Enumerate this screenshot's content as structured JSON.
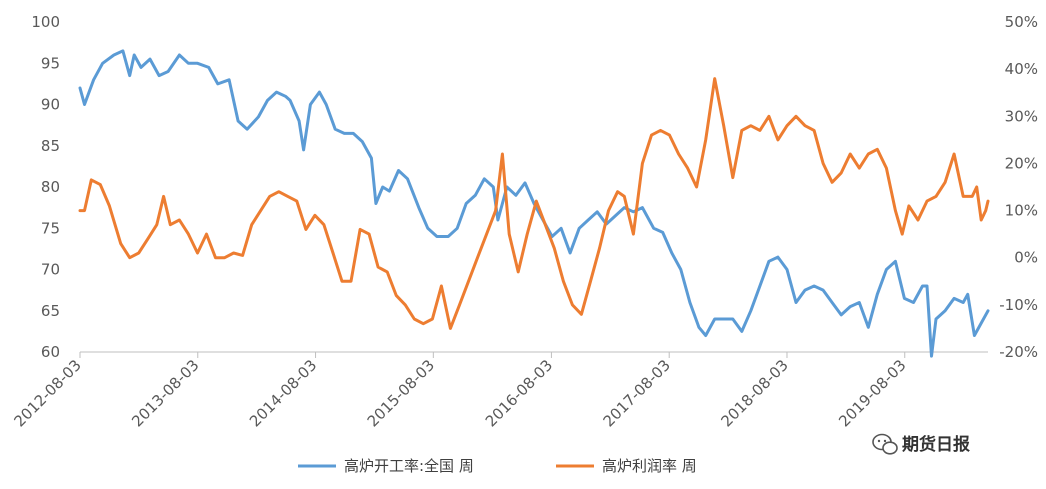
{
  "chart_data": {
    "type": "line",
    "title": "",
    "xlabel": "",
    "ylabel": "",
    "y_left": {
      "ticks": [
        60,
        65,
        70,
        75,
        80,
        85,
        90,
        95,
        100
      ],
      "ylim": [
        60,
        100
      ]
    },
    "y_right": {
      "ticks": [
        "-20%",
        "-10%",
        "0%",
        "10%",
        "20%",
        "30%",
        "40%",
        "50%"
      ],
      "ylim": [
        -20,
        50
      ],
      "unit": "%"
    },
    "x_ticks": [
      "2012-08-03",
      "2013-08-03",
      "2014-08-03",
      "2015-08-03",
      "2016-08-03",
      "2017-08-03",
      "2018-08-03",
      "2019-08-03"
    ],
    "xlim": [
      "2012-08-03",
      "2020-04-17"
    ],
    "grid": false,
    "legend_position": "bottom",
    "series": [
      {
        "name": "高炉开工率:全国 周",
        "axis": "left",
        "color": "#5B9BD5",
        "points": [
          [
            "2012-08-03",
            92
          ],
          [
            "2012-08-17",
            90
          ],
          [
            "2012-09-14",
            93
          ],
          [
            "2012-10-12",
            95
          ],
          [
            "2012-11-16",
            96
          ],
          [
            "2012-12-14",
            96.5
          ],
          [
            "2013-01-04",
            93.5
          ],
          [
            "2013-01-18",
            96
          ],
          [
            "2013-02-08",
            94.5
          ],
          [
            "2013-03-08",
            95.5
          ],
          [
            "2013-04-05",
            93.5
          ],
          [
            "2013-05-03",
            94
          ],
          [
            "2013-06-07",
            96
          ],
          [
            "2013-07-05",
            95
          ],
          [
            "2013-08-02",
            95
          ],
          [
            "2013-09-06",
            94.5
          ],
          [
            "2013-10-04",
            92.5
          ],
          [
            "2013-11-08",
            93
          ],
          [
            "2013-12-06",
            88
          ],
          [
            "2014-01-03",
            87
          ],
          [
            "2014-02-07",
            88.5
          ],
          [
            "2014-03-07",
            90.5
          ],
          [
            "2014-04-04",
            91.5
          ],
          [
            "2014-05-02",
            91
          ],
          [
            "2014-05-16",
            90.5
          ],
          [
            "2014-06-13",
            88
          ],
          [
            "2014-06-27",
            84.5
          ],
          [
            "2014-07-18",
            90
          ],
          [
            "2014-08-15",
            91.5
          ],
          [
            "2014-09-05",
            90
          ],
          [
            "2014-10-03",
            87
          ],
          [
            "2014-10-31",
            86.5
          ],
          [
            "2014-11-28",
            86.5
          ],
          [
            "2014-12-26",
            85.5
          ],
          [
            "2015-01-23",
            83.5
          ],
          [
            "2015-02-06",
            78
          ],
          [
            "2015-02-27",
            80
          ],
          [
            "2015-03-20",
            79.5
          ],
          [
            "2015-04-17",
            82
          ],
          [
            "2015-05-15",
            81
          ],
          [
            "2015-06-19",
            77.5
          ],
          [
            "2015-07-17",
            75
          ],
          [
            "2015-08-14",
            74
          ],
          [
            "2015-09-18",
            74
          ],
          [
            "2015-10-16",
            75
          ],
          [
            "2015-11-13",
            78
          ],
          [
            "2015-12-11",
            79
          ],
          [
            "2016-01-08",
            81
          ],
          [
            "2016-02-05",
            80
          ],
          [
            "2016-02-19",
            76
          ],
          [
            "2016-03-18",
            80
          ],
          [
            "2016-04-15",
            79
          ],
          [
            "2016-05-13",
            80.5
          ],
          [
            "2016-06-10",
            78
          ],
          [
            "2016-07-08",
            76
          ],
          [
            "2016-08-05",
            74
          ],
          [
            "2016-09-02",
            75
          ],
          [
            "2016-09-30",
            72
          ],
          [
            "2016-10-28",
            75
          ],
          [
            "2016-11-25",
            76
          ],
          [
            "2016-12-23",
            77
          ],
          [
            "2017-01-20",
            75.5
          ],
          [
            "2017-02-17",
            76.5
          ],
          [
            "2017-03-17",
            77.5
          ],
          [
            "2017-04-14",
            77
          ],
          [
            "2017-05-12",
            77.5
          ],
          [
            "2017-06-16",
            75
          ],
          [
            "2017-07-14",
            74.5
          ],
          [
            "2017-08-11",
            72
          ],
          [
            "2017-09-08",
            70
          ],
          [
            "2017-10-06",
            66
          ],
          [
            "2017-11-03",
            63
          ],
          [
            "2017-11-24",
            62
          ],
          [
            "2017-12-22",
            64
          ],
          [
            "2018-01-19",
            64
          ],
          [
            "2018-02-16",
            64
          ],
          [
            "2018-03-16",
            62.5
          ],
          [
            "2018-04-13",
            65
          ],
          [
            "2018-05-11",
            68
          ],
          [
            "2018-06-08",
            71
          ],
          [
            "2018-07-06",
            71.5
          ],
          [
            "2018-08-03",
            70
          ],
          [
            "2018-08-31",
            66
          ],
          [
            "2018-09-28",
            67.5
          ],
          [
            "2018-10-26",
            68
          ],
          [
            "2018-11-23",
            67.5
          ],
          [
            "2018-12-21",
            66
          ],
          [
            "2019-01-18",
            64.5
          ],
          [
            "2019-02-15",
            65.5
          ],
          [
            "2019-03-15",
            66
          ],
          [
            "2019-04-12",
            63
          ],
          [
            "2019-05-10",
            67
          ],
          [
            "2019-06-07",
            70
          ],
          [
            "2019-07-05",
            71
          ],
          [
            "2019-08-02",
            66.5
          ],
          [
            "2019-08-30",
            66
          ],
          [
            "2019-09-27",
            68
          ],
          [
            "2019-10-11",
            68
          ],
          [
            "2019-10-25",
            59.5
          ],
          [
            "2019-11-08",
            64
          ],
          [
            "2019-12-06",
            65
          ],
          [
            "2020-01-03",
            66.5
          ],
          [
            "2020-01-31",
            66
          ],
          [
            "2020-02-14",
            67
          ],
          [
            "2020-03-06",
            62
          ],
          [
            "2020-03-27",
            63.5
          ],
          [
            "2020-04-17",
            65
          ]
        ]
      },
      {
        "name": "高炉利润率 周",
        "axis": "right",
        "color": "#ED7D31",
        "points": [
          [
            "2012-08-03",
            10
          ],
          [
            "2012-08-17",
            10
          ],
          [
            "2012-09-07",
            16.5
          ],
          [
            "2012-10-05",
            15.5
          ],
          [
            "2012-11-02",
            11
          ],
          [
            "2012-12-07",
            3
          ],
          [
            "2013-01-04",
            0
          ],
          [
            "2013-02-01",
            1
          ],
          [
            "2013-03-01",
            4
          ],
          [
            "2013-03-29",
            7
          ],
          [
            "2013-04-19",
            13
          ],
          [
            "2013-05-10",
            7
          ],
          [
            "2013-06-07",
            8
          ],
          [
            "2013-07-05",
            5
          ],
          [
            "2013-08-02",
            1
          ],
          [
            "2013-08-30",
            5
          ],
          [
            "2013-09-27",
            0
          ],
          [
            "2013-10-25",
            0
          ],
          [
            "2013-11-22",
            1
          ],
          [
            "2013-12-20",
            0.5
          ],
          [
            "2014-01-17",
            7
          ],
          [
            "2014-02-14",
            10
          ],
          [
            "2014-03-14",
            13
          ],
          [
            "2014-04-11",
            14
          ],
          [
            "2014-05-09",
            13
          ],
          [
            "2014-06-06",
            12
          ],
          [
            "2014-07-04",
            6
          ],
          [
            "2014-08-01",
            9
          ],
          [
            "2014-08-29",
            7
          ],
          [
            "2014-09-26",
            1
          ],
          [
            "2014-10-24",
            -5
          ],
          [
            "2014-11-21",
            -5
          ],
          [
            "2014-12-19",
            6
          ],
          [
            "2015-01-16",
            5
          ],
          [
            "2015-02-13",
            -2
          ],
          [
            "2015-03-13",
            -3
          ],
          [
            "2015-04-10",
            -8
          ],
          [
            "2015-05-08",
            -10
          ],
          [
            "2015-06-05",
            -13
          ],
          [
            "2015-07-03",
            -14
          ],
          [
            "2015-07-31",
            -13
          ],
          [
            "2015-08-28",
            -6
          ],
          [
            "2015-09-25",
            -15
          ],
          [
            "2015-10-23",
            -10
          ],
          [
            "2015-11-20",
            -5
          ],
          [
            "2015-12-18",
            0
          ],
          [
            "2016-01-15",
            5
          ],
          [
            "2016-02-12",
            10
          ],
          [
            "2016-03-04",
            22
          ],
          [
            "2016-03-25",
            5
          ],
          [
            "2016-04-22",
            -3
          ],
          [
            "2016-05-20",
            5
          ],
          [
            "2016-06-17",
            12
          ],
          [
            "2016-07-15",
            7
          ],
          [
            "2016-08-12",
            2
          ],
          [
            "2016-09-09",
            -5
          ],
          [
            "2016-10-07",
            -10
          ],
          [
            "2016-11-04",
            -12
          ],
          [
            "2016-12-02",
            -5
          ],
          [
            "2016-12-30",
            2
          ],
          [
            "2017-01-27",
            10
          ],
          [
            "2017-02-24",
            14
          ],
          [
            "2017-03-17",
            13
          ],
          [
            "2017-04-14",
            5
          ],
          [
            "2017-05-12",
            20
          ],
          [
            "2017-06-09",
            26
          ],
          [
            "2017-07-07",
            27
          ],
          [
            "2017-08-04",
            26
          ],
          [
            "2017-09-01",
            22
          ],
          [
            "2017-09-29",
            19
          ],
          [
            "2017-10-27",
            15
          ],
          [
            "2017-11-24",
            25
          ],
          [
            "2017-12-22",
            38
          ],
          [
            "2018-01-19",
            28
          ],
          [
            "2018-02-16",
            17
          ],
          [
            "2018-03-16",
            27
          ],
          [
            "2018-04-13",
            28
          ],
          [
            "2018-05-11",
            27
          ],
          [
            "2018-06-08",
            30
          ],
          [
            "2018-07-06",
            25
          ],
          [
            "2018-08-03",
            28
          ],
          [
            "2018-08-31",
            30
          ],
          [
            "2018-09-28",
            28
          ],
          [
            "2018-10-26",
            27
          ],
          [
            "2018-11-23",
            20
          ],
          [
            "2018-12-21",
            16
          ],
          [
            "2019-01-18",
            18
          ],
          [
            "2019-02-15",
            22
          ],
          [
            "2019-03-15",
            19
          ],
          [
            "2019-04-12",
            22
          ],
          [
            "2019-05-10",
            23
          ],
          [
            "2019-06-07",
            19
          ],
          [
            "2019-07-05",
            10
          ],
          [
            "2019-07-26",
            5
          ],
          [
            "2019-08-16",
            11
          ],
          [
            "2019-09-13",
            8
          ],
          [
            "2019-10-11",
            12
          ],
          [
            "2019-11-08",
            13
          ],
          [
            "2019-12-06",
            16
          ],
          [
            "2020-01-03",
            22
          ],
          [
            "2020-01-31",
            13
          ],
          [
            "2020-02-28",
            13
          ],
          [
            "2020-03-13",
            15
          ],
          [
            "2020-03-27",
            8
          ],
          [
            "2020-04-10",
            10
          ],
          [
            "2020-04-17",
            12
          ]
        ]
      }
    ]
  },
  "watermark": {
    "icon": "wechat-icon",
    "text": "期货日报"
  }
}
